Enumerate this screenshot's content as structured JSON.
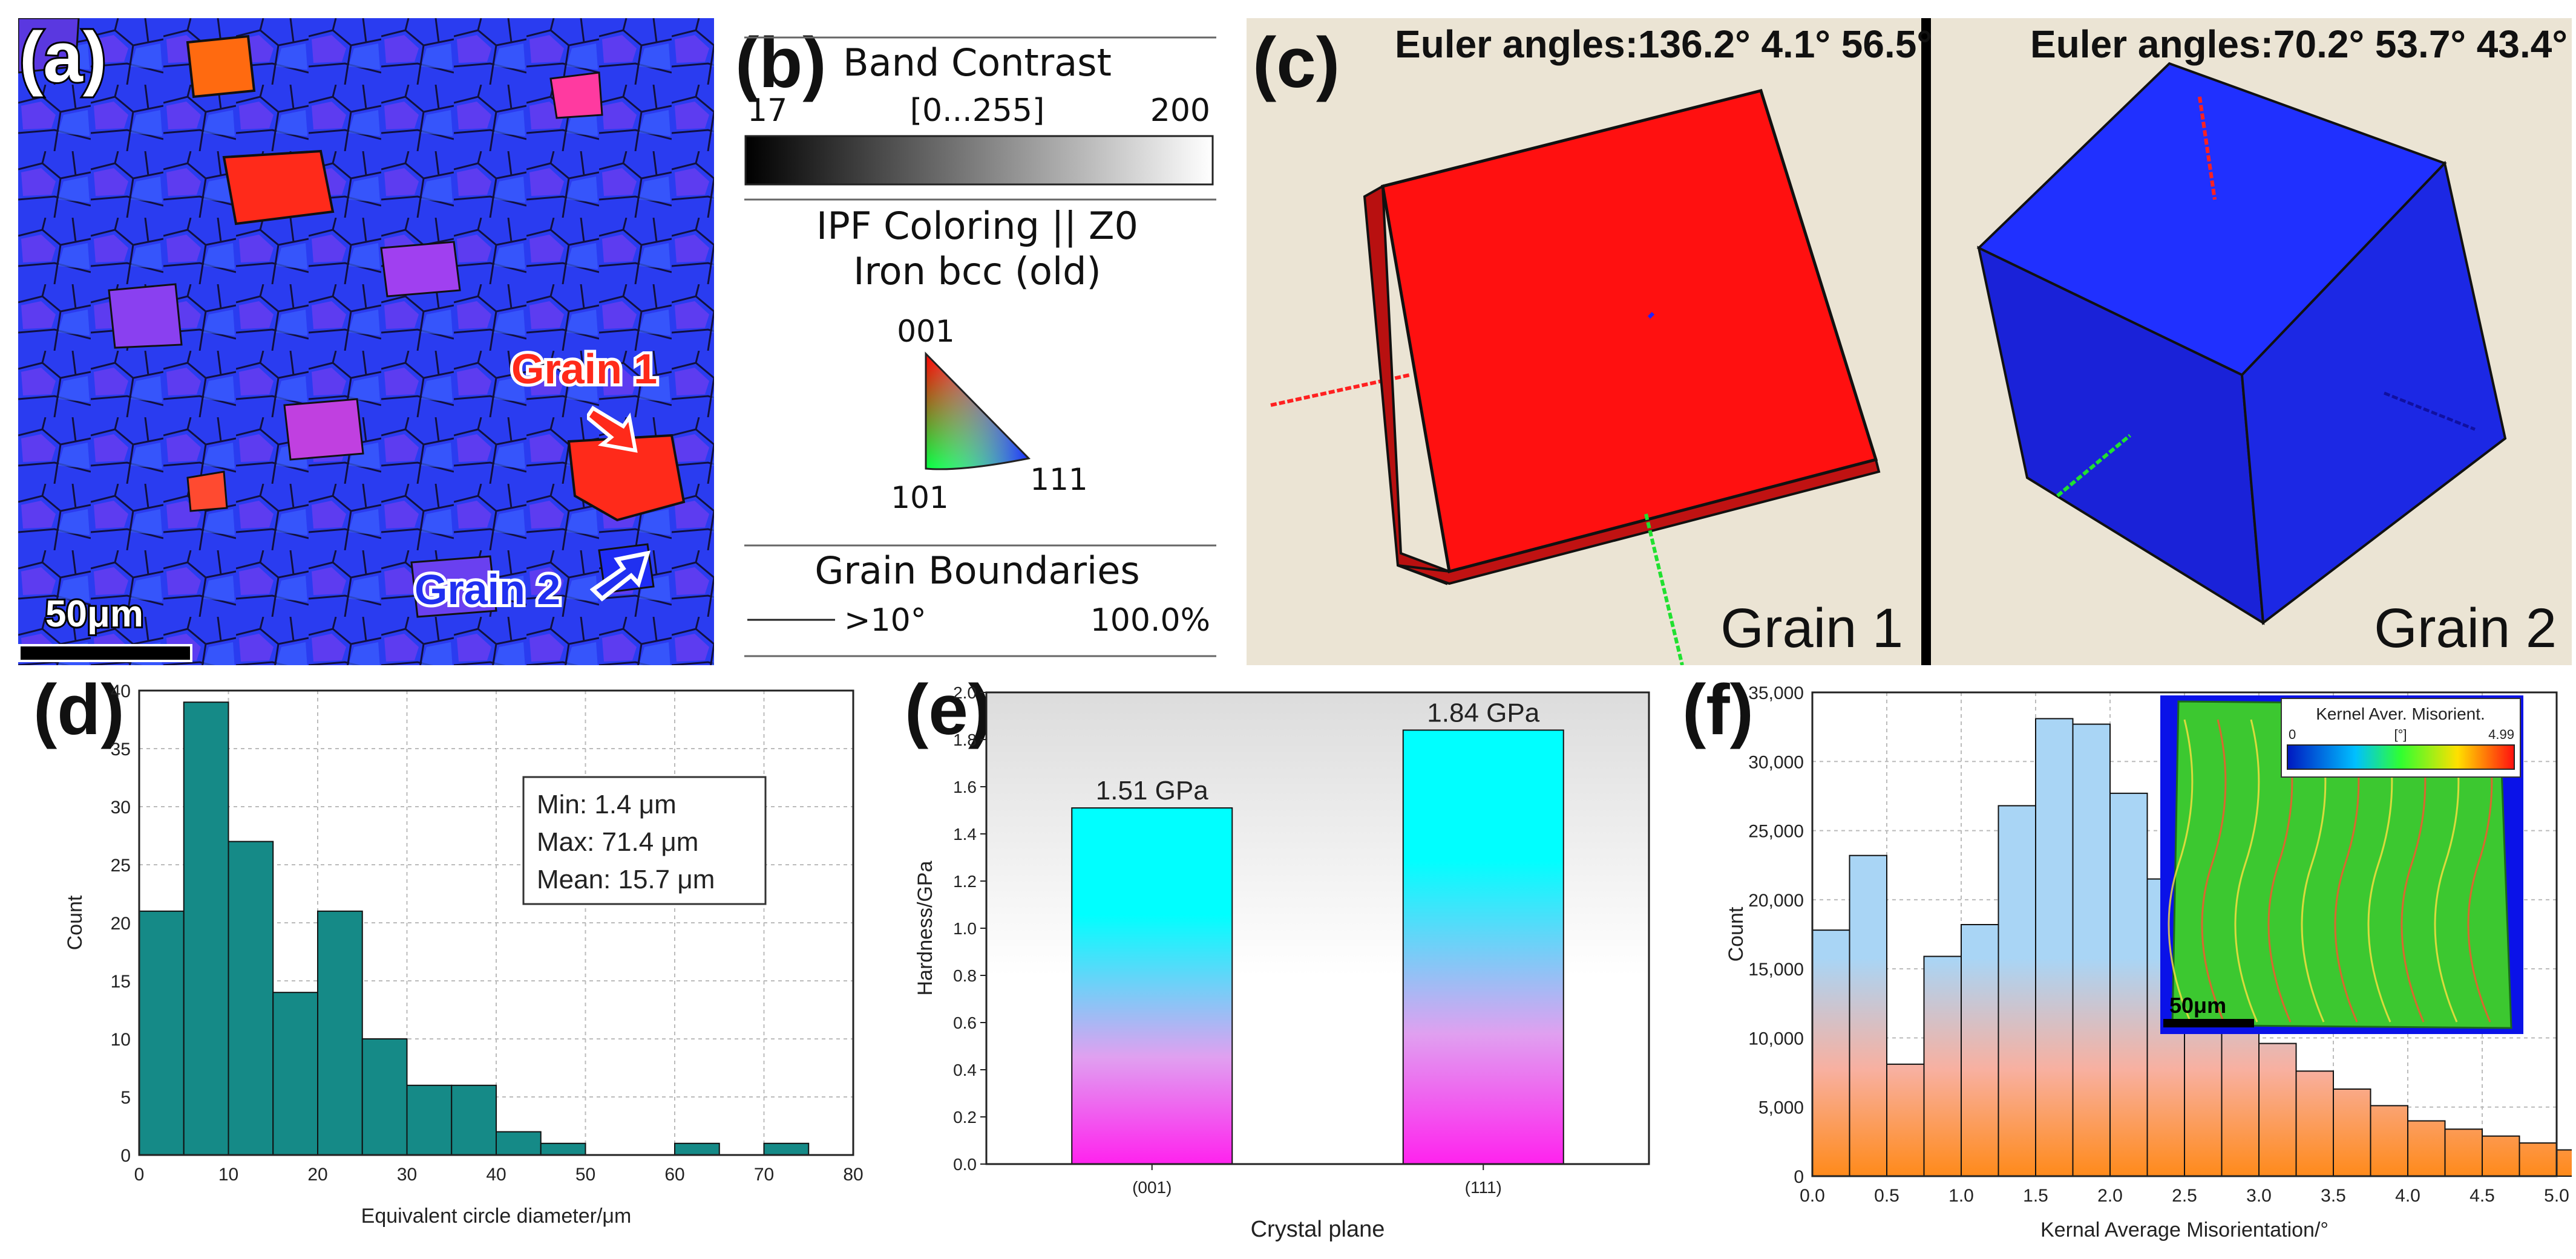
{
  "panels": {
    "a": {
      "label": "(a)",
      "grain1": "Grain 1",
      "grain2": "Grain 2",
      "scalebar": "50μm",
      "colors": {
        "red": "#ff2a1a",
        "blue": "#2030f0",
        "white": "#ffffff"
      }
    },
    "b": {
      "label": "(b)",
      "band_title": "Band Contrast",
      "band_min": "17",
      "band_range": "[0...255]",
      "band_max": "200",
      "ipf_title": "IPF Coloring || Z0",
      "ipf_phase": "Iron bcc (old)",
      "pole_001": "001",
      "pole_101": "101",
      "pole_111": "111",
      "gb_title": "Grain Boundaries",
      "gb_threshold": ">10°",
      "gb_percent": "100.0%"
    },
    "c": {
      "label": "(c)",
      "grain1_euler": "Euler angles:136.2° 4.1° 56.5°",
      "grain2_euler": "Euler angles:70.2° 53.7° 43.4°",
      "grain1_name": "Grain 1",
      "grain2_name": "Grain 2",
      "colors": {
        "bg": "#ebe4d4",
        "cube1": "#ff1010",
        "cube2": "#1820e0"
      }
    },
    "d": {
      "label": "(d)"
    },
    "e": {
      "label": "(e)"
    },
    "f": {
      "label": "(f)",
      "inset_title": "Kernel Aver. Misorient.",
      "inset_min": "0",
      "inset_unit": "[°]",
      "inset_max": "4.99",
      "inset_scalebar": "50μm"
    }
  },
  "chart_data": [
    {
      "id": "d",
      "type": "bar",
      "bins": [
        [
          0,
          5
        ],
        [
          5,
          10
        ],
        [
          10,
          15
        ],
        [
          15,
          20
        ],
        [
          20,
          25
        ],
        [
          25,
          30
        ],
        [
          30,
          35
        ],
        [
          35,
          40
        ],
        [
          40,
          45
        ],
        [
          45,
          50
        ],
        [
          50,
          55
        ],
        [
          55,
          60
        ],
        [
          60,
          65
        ],
        [
          65,
          70
        ],
        [
          70,
          75
        ],
        [
          75,
          80
        ]
      ],
      "values": [
        21,
        39,
        27,
        14,
        21,
        10,
        6,
        6,
        2,
        1,
        0,
        0,
        1,
        0,
        1,
        0
      ],
      "xlabel": "Equivalent circle diameter/μm",
      "ylabel": "Count",
      "xlim": [
        0,
        80
      ],
      "ylim": [
        0,
        40
      ],
      "xticks": [
        0,
        10,
        20,
        30,
        40,
        50,
        60,
        70,
        80
      ],
      "yticks": [
        0,
        5,
        10,
        15,
        20,
        25,
        30,
        35,
        40
      ],
      "grid": true,
      "bar_color": "#158a87",
      "annotation": [
        "Min: 1.4 μm",
        "Max: 71.4 μm",
        "Mean: 15.7 μm"
      ]
    },
    {
      "id": "e",
      "type": "bar",
      "categories": [
        "(001)",
        "(111)"
      ],
      "values": [
        1.51,
        1.84
      ],
      "data_labels": [
        "1.51 GPa",
        "1.84 GPa"
      ],
      "xlabel": "Crystal plane",
      "ylabel": "Hardness/GPa",
      "ylim": [
        0,
        2.0
      ],
      "yticks": [
        "0.0",
        "0.2",
        "0.4",
        "0.6",
        "0.8",
        "1.0",
        "1.2",
        "1.4",
        "1.6",
        "1.8",
        "2.0"
      ],
      "grid": false,
      "colors": {
        "top": "#00ffff",
        "bottom": "#ff22ee"
      }
    },
    {
      "id": "f",
      "type": "bar",
      "bin_width": 0.25,
      "x_start": 0,
      "values": [
        17800,
        23200,
        8100,
        15900,
        18200,
        26800,
        33100,
        32700,
        27700,
        21500,
        16200,
        12400,
        9600,
        7600,
        6300,
        5100,
        4000,
        3400,
        2900,
        2400,
        1900
      ],
      "xlabel": "Kernal Average Misorientation/°",
      "ylabel": "Count",
      "xlim": [
        0,
        5.0
      ],
      "ylim": [
        0,
        35000
      ],
      "xticks": [
        "0.0",
        "0.5",
        "1.0",
        "1.5",
        "2.0",
        "2.5",
        "3.0",
        "3.5",
        "4.0",
        "4.5",
        "5.0"
      ],
      "yticks": [
        "0",
        "5,000",
        "10,000",
        "15,000",
        "20,000",
        "25,000",
        "30,000",
        "35,000"
      ],
      "grid": true,
      "colors": {
        "top": "#a9d5f5",
        "bottom": "#ff8a1a"
      }
    }
  ]
}
